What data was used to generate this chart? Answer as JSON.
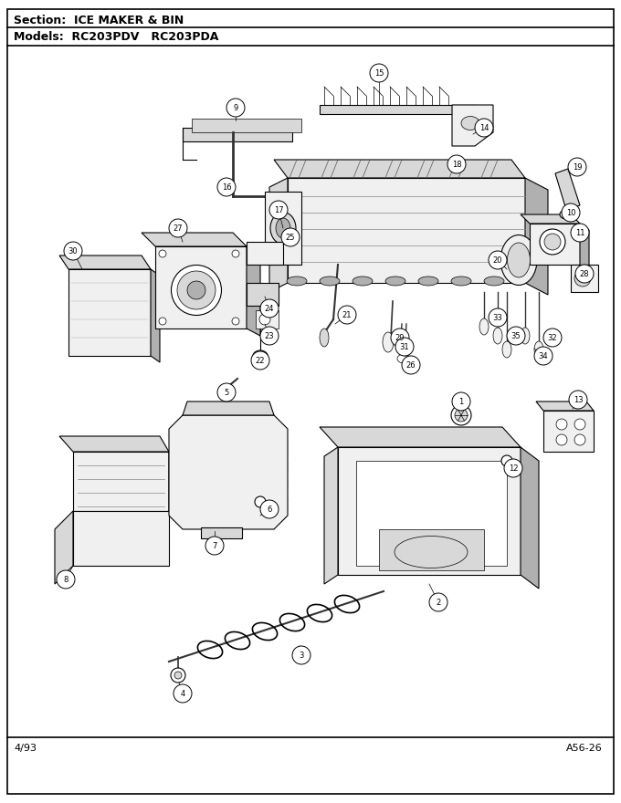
{
  "title_section": "Section:  ICE MAKER & BIN",
  "title_models": "Models:  RC203PDV   RC203PDA",
  "footer_left": "4/93",
  "footer_right": "A56-26",
  "bg_color": "#ffffff",
  "border_color": "#000000",
  "text_color": "#000000",
  "fig_width": 6.8,
  "fig_height": 8.8,
  "dpi": 100,
  "section_font_size": 9,
  "models_font_size": 9,
  "footer_font_size": 8,
  "label_font_size": 6.5
}
